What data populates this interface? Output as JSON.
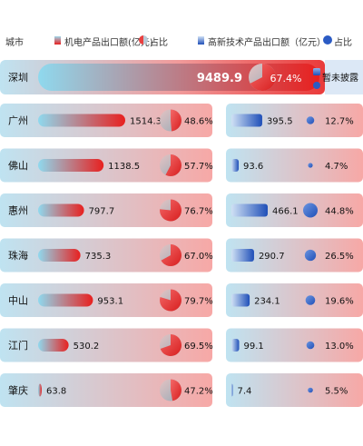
{
  "legend": {
    "city_header": "城市",
    "left_label": "机电产品出口额(亿元)",
    "left_share": "占比",
    "right_label": "高新技术产品出口额（亿元）",
    "right_share": "占比"
  },
  "colors": {
    "electro_bar_start": "#8fd9ee",
    "electro_bar_end": "#e8201f",
    "hightech_bar_start": "#cfe0f4",
    "hightech_bar_end": "#1f4fb8",
    "row_bg_start": "#bfe3f1",
    "row_bg_end": "#f7a8a6",
    "shenzhen_row_end": "#e93a3a"
  },
  "chart_data": {
    "type": "bar",
    "categories": [
      "深圳",
      "广州",
      "佛山",
      "惠州",
      "珠海",
      "中山",
      "江门",
      "肇庆"
    ],
    "series": [
      {
        "name": "机电产品出口额(亿元)",
        "values": [
          9489.9,
          1514.3,
          1138.5,
          797.7,
          735.3,
          953.1,
          530.2,
          63.8
        ]
      },
      {
        "name": "占比",
        "values": [
          67.4,
          48.6,
          57.7,
          76.7,
          67.0,
          79.7,
          69.5,
          47.2
        ]
      },
      {
        "name": "高新技术产品出口额（亿元）",
        "values": [
          null,
          395.5,
          93.6,
          466.1,
          290.7,
          234.1,
          99.1,
          7.4
        ]
      },
      {
        "name": "占比",
        "values": [
          null,
          12.7,
          4.7,
          44.8,
          26.5,
          19.6,
          13.0,
          5.5
        ]
      }
    ],
    "labels": {
      "electro_values": [
        "9489.9",
        "1514.3",
        "1138.5",
        "797.7",
        "735.3",
        "953.1",
        "530.2",
        "63.8"
      ],
      "electro_shares": [
        "67.4%",
        "48.6%",
        "57.7%",
        "76.7%",
        "67.0%",
        "79.7%",
        "69.5%",
        "47.2%"
      ],
      "hightech_values": [
        "",
        "395.5",
        "93.6",
        "466.1",
        "290.7",
        "234.1",
        "99.1",
        "7.4"
      ],
      "hightech_shares": [
        "",
        "12.7%",
        "4.7%",
        "44.8%",
        "26.5%",
        "19.6%",
        "13.0%",
        "5.5%"
      ]
    },
    "annotation": "暂未披露"
  }
}
